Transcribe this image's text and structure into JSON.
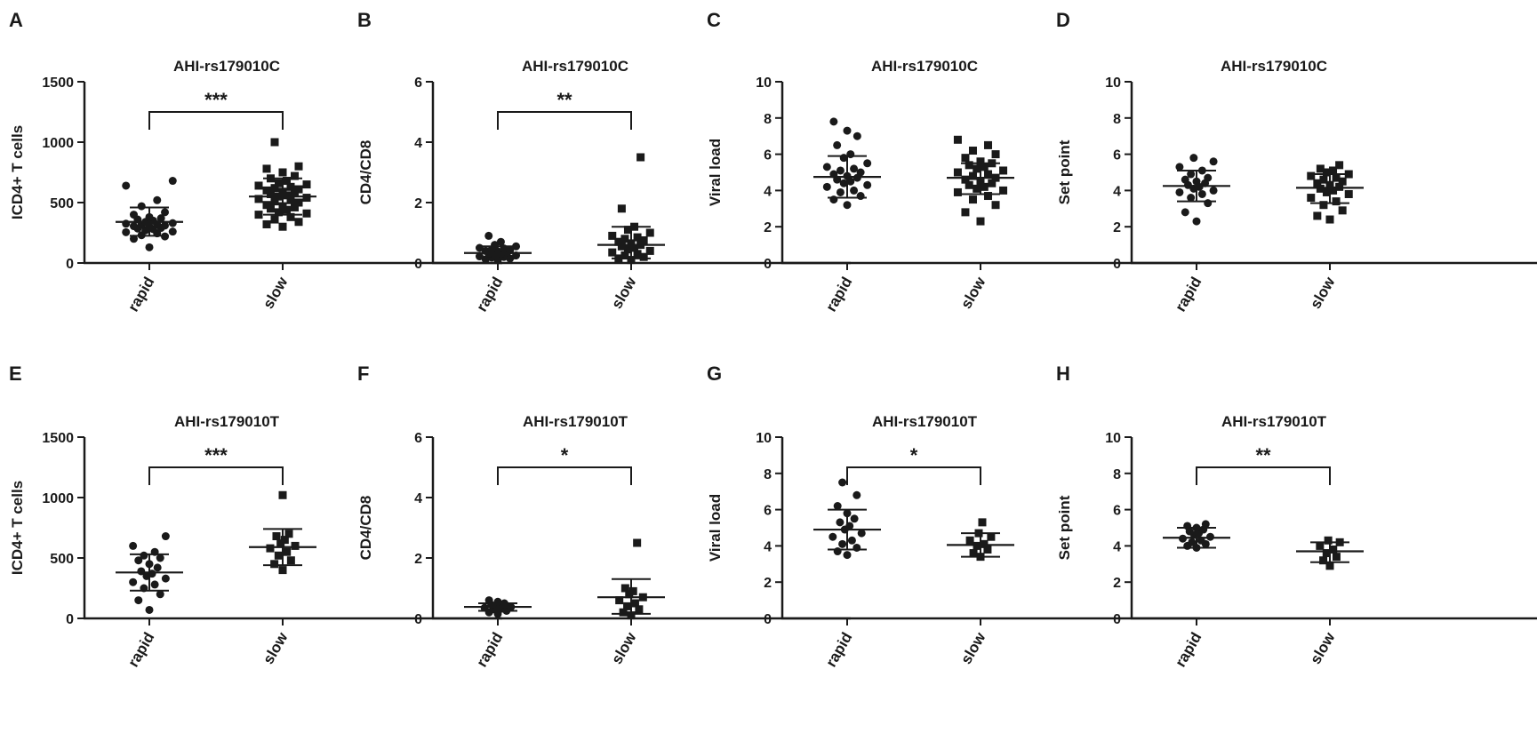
{
  "figure": {
    "groups": [
      "rapid",
      "slow"
    ],
    "colors": {
      "ink": "#1a1a1a",
      "background": "#ffffff"
    }
  },
  "chart_data": [
    {
      "panel": "A",
      "type": "scatter",
      "title": "AHI-rs179010C",
      "ylabel": "ICD4+ T cells",
      "categories": [
        "rapid",
        "slow"
      ],
      "ylim": [
        0,
        1500
      ],
      "yticks": [
        0,
        500,
        1000,
        1500
      ],
      "significance": "***",
      "series": [
        {
          "name": "rapid",
          "marker": "circle",
          "mean": 340,
          "sd_low": 225,
          "sd_high": 460,
          "values": [
            130,
            200,
            220,
            230,
            245,
            255,
            260,
            270,
            280,
            285,
            290,
            300,
            305,
            310,
            315,
            320,
            325,
            330,
            340,
            350,
            360,
            370,
            380,
            400,
            420,
            470,
            520,
            640,
            680
          ]
        },
        {
          "name": "slow",
          "marker": "square",
          "mean": 550,
          "sd_low": 400,
          "sd_high": 700,
          "values": [
            300,
            320,
            340,
            360,
            380,
            400,
            410,
            420,
            440,
            450,
            460,
            470,
            480,
            500,
            510,
            520,
            530,
            540,
            550,
            560,
            570,
            580,
            590,
            600,
            610,
            620,
            630,
            640,
            650,
            660,
            680,
            700,
            720,
            750,
            780,
            800,
            1000
          ]
        }
      ]
    },
    {
      "panel": "B",
      "type": "scatter",
      "title": "AHI-rs179010C",
      "ylabel": "CD4/CD8",
      "categories": [
        "rapid",
        "slow"
      ],
      "ylim": [
        0,
        6
      ],
      "yticks": [
        0,
        2,
        4,
        6
      ],
      "significance": "**",
      "series": [
        {
          "name": "rapid",
          "marker": "circle",
          "mean": 0.33,
          "sd_low": 0.15,
          "sd_high": 0.55,
          "values": [
            0.1,
            0.12,
            0.15,
            0.18,
            0.2,
            0.22,
            0.25,
            0.27,
            0.3,
            0.32,
            0.35,
            0.38,
            0.4,
            0.42,
            0.45,
            0.48,
            0.5,
            0.55,
            0.6,
            0.7,
            0.9
          ]
        },
        {
          "name": "slow",
          "marker": "square",
          "mean": 0.6,
          "sd_low": 0.15,
          "sd_high": 1.2,
          "values": [
            0.1,
            0.15,
            0.2,
            0.25,
            0.3,
            0.35,
            0.4,
            0.45,
            0.5,
            0.55,
            0.6,
            0.65,
            0.7,
            0.75,
            0.8,
            0.85,
            0.9,
            1.0,
            1.1,
            1.2,
            1.8,
            3.5
          ]
        }
      ]
    },
    {
      "panel": "C",
      "type": "scatter",
      "title": "AHI-rs179010C",
      "ylabel": "Viral load",
      "categories": [
        "rapid",
        "slow"
      ],
      "ylim": [
        0,
        10
      ],
      "yticks": [
        0,
        2,
        4,
        6,
        8,
        10
      ],
      "significance": "",
      "series": [
        {
          "name": "rapid",
          "marker": "circle",
          "mean": 4.75,
          "sd_low": 3.6,
          "sd_high": 5.9,
          "values": [
            3.2,
            3.5,
            3.7,
            3.9,
            4.0,
            4.2,
            4.3,
            4.4,
            4.5,
            4.6,
            4.7,
            4.8,
            4.9,
            5.0,
            5.1,
            5.2,
            5.3,
            5.5,
            5.8,
            6.0,
            6.5,
            7.0,
            7.3,
            7.8
          ]
        },
        {
          "name": "slow",
          "marker": "square",
          "mean": 4.7,
          "sd_low": 3.8,
          "sd_high": 5.5,
          "values": [
            2.3,
            2.8,
            3.2,
            3.5,
            3.7,
            3.9,
            4.0,
            4.1,
            4.2,
            4.3,
            4.4,
            4.5,
            4.6,
            4.7,
            4.8,
            4.9,
            5.0,
            5.1,
            5.2,
            5.3,
            5.4,
            5.5,
            5.6,
            5.8,
            6.0,
            6.2,
            6.5,
            6.8
          ]
        }
      ]
    },
    {
      "panel": "D",
      "type": "scatter",
      "title": "AHI-rs179010C",
      "ylabel": "Set point",
      "categories": [
        "rapid",
        "slow"
      ],
      "ylim": [
        0,
        10
      ],
      "yticks": [
        0,
        2,
        4,
        6,
        8,
        10
      ],
      "significance": "",
      "series": [
        {
          "name": "rapid",
          "marker": "circle",
          "mean": 4.25,
          "sd_low": 3.4,
          "sd_high": 5.1,
          "values": [
            2.3,
            2.8,
            3.3,
            3.6,
            3.8,
            3.9,
            4.0,
            4.1,
            4.2,
            4.3,
            4.4,
            4.5,
            4.6,
            4.7,
            4.9,
            5.1,
            5.3,
            5.6,
            5.8
          ]
        },
        {
          "name": "slow",
          "marker": "square",
          "mean": 4.15,
          "sd_low": 3.3,
          "sd_high": 4.9,
          "values": [
            2.4,
            2.6,
            2.9,
            3.2,
            3.4,
            3.6,
            3.8,
            3.9,
            4.0,
            4.1,
            4.2,
            4.3,
            4.4,
            4.5,
            4.6,
            4.7,
            4.8,
            4.9,
            5.0,
            5.1,
            5.2,
            5.4
          ]
        }
      ]
    },
    {
      "panel": "E",
      "type": "scatter",
      "title": "AHI-rs179010T",
      "ylabel": "ICD4+ T cells",
      "categories": [
        "rapid",
        "slow"
      ],
      "ylim": [
        0,
        1500
      ],
      "yticks": [
        0,
        500,
        1000,
        1500
      ],
      "significance": "***",
      "series": [
        {
          "name": "rapid",
          "marker": "circle",
          "mean": 380,
          "sd_low": 230,
          "sd_high": 530,
          "values": [
            70,
            150,
            200,
            250,
            280,
            300,
            330,
            350,
            370,
            390,
            420,
            450,
            480,
            500,
            520,
            550,
            600,
            680
          ]
        },
        {
          "name": "slow",
          "marker": "square",
          "mean": 590,
          "sd_low": 440,
          "sd_high": 740,
          "values": [
            400,
            450,
            480,
            520,
            550,
            580,
            600,
            620,
            650,
            680,
            700,
            1020
          ]
        }
      ]
    },
    {
      "panel": "F",
      "type": "scatter",
      "title": "AHI-rs179010T",
      "ylabel": "CD4/CD8",
      "categories": [
        "rapid",
        "slow"
      ],
      "ylim": [
        0,
        6
      ],
      "yticks": [
        0,
        2,
        4,
        6
      ],
      "significance": "*",
      "series": [
        {
          "name": "rapid",
          "marker": "circle",
          "mean": 0.38,
          "sd_low": 0.25,
          "sd_high": 0.5,
          "values": [
            0.15,
            0.2,
            0.25,
            0.3,
            0.32,
            0.35,
            0.38,
            0.4,
            0.42,
            0.45,
            0.5,
            0.55,
            0.6
          ]
        },
        {
          "name": "slow",
          "marker": "square",
          "mean": 0.7,
          "sd_low": 0.15,
          "sd_high": 1.3,
          "values": [
            0.1,
            0.2,
            0.3,
            0.4,
            0.5,
            0.6,
            0.7,
            0.8,
            0.9,
            1.0,
            2.5
          ]
        }
      ]
    },
    {
      "panel": "G",
      "type": "scatter",
      "title": "AHI-rs179010T",
      "ylabel": "Viral load",
      "categories": [
        "rapid",
        "slow"
      ],
      "ylim": [
        0,
        10
      ],
      "yticks": [
        0,
        2,
        4,
        6,
        8,
        10
      ],
      "significance": "*",
      "series": [
        {
          "name": "rapid",
          "marker": "circle",
          "mean": 4.9,
          "sd_low": 3.8,
          "sd_high": 6.0,
          "values": [
            3.5,
            3.7,
            3.9,
            4.1,
            4.3,
            4.5,
            4.7,
            4.9,
            5.1,
            5.3,
            5.5,
            5.8,
            6.2,
            6.8,
            7.5
          ]
        },
        {
          "name": "slow",
          "marker": "square",
          "mean": 4.05,
          "sd_low": 3.4,
          "sd_high": 4.7,
          "values": [
            3.4,
            3.6,
            3.8,
            4.0,
            4.1,
            4.3,
            4.5,
            4.7,
            5.3
          ]
        }
      ]
    },
    {
      "panel": "H",
      "type": "scatter",
      "title": "AHI-rs179010T",
      "ylabel": "Set point",
      "categories": [
        "rapid",
        "slow"
      ],
      "ylim": [
        0,
        10
      ],
      "yticks": [
        0,
        2,
        4,
        6,
        8,
        10
      ],
      "significance": "**",
      "series": [
        {
          "name": "rapid",
          "marker": "circle",
          "mean": 4.45,
          "sd_low": 3.9,
          "sd_high": 5.0,
          "values": [
            3.9,
            4.0,
            4.1,
            4.2,
            4.3,
            4.4,
            4.5,
            4.6,
            4.7,
            4.8,
            4.9,
            5.0,
            5.1,
            5.2
          ]
        },
        {
          "name": "slow",
          "marker": "square",
          "mean": 3.7,
          "sd_low": 3.1,
          "sd_high": 4.2,
          "values": [
            2.9,
            3.2,
            3.4,
            3.6,
            3.8,
            4.0,
            4.2,
            4.3
          ]
        }
      ]
    }
  ]
}
